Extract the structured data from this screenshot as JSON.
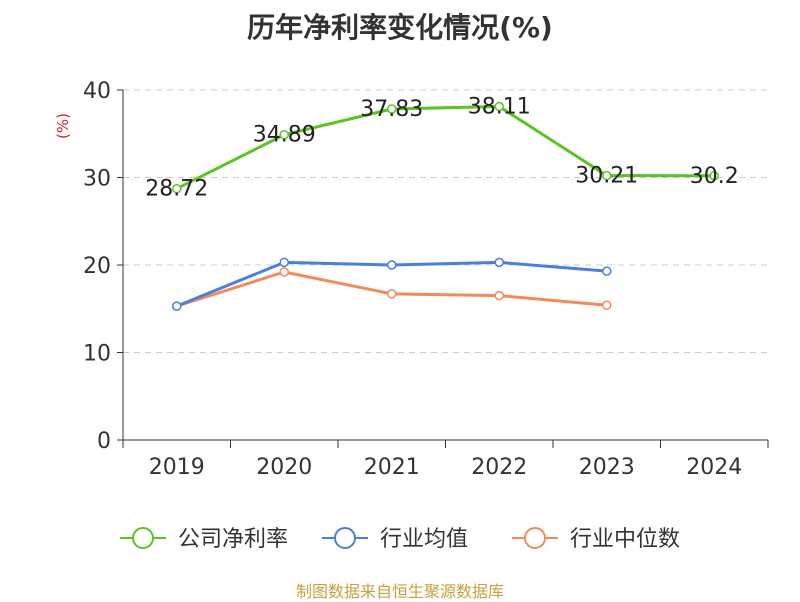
{
  "chart_data": {
    "type": "line",
    "title": "历年净利率变化情况(%)",
    "ylabel": "(%)",
    "categories": [
      "2019",
      "2020",
      "2021",
      "2022",
      "2023",
      "2024"
    ],
    "ylim": [
      0,
      40
    ],
    "yticks": [
      "0",
      "10",
      "20",
      "30",
      "40"
    ],
    "grid": true,
    "legend_position": "bottom",
    "series": [
      {
        "name": "公司净利率",
        "color": "#5cc324",
        "values": [
          28.72,
          34.89,
          37.83,
          38.11,
          30.21,
          30.2
        ],
        "labels": [
          "28.72",
          "34.89",
          "37.83",
          "38.11",
          "30.21",
          "30.2"
        ]
      },
      {
        "name": "行业均值",
        "color": "#4a80dc",
        "values": [
          15.3,
          20.3,
          20.0,
          20.3,
          19.3,
          null
        ]
      },
      {
        "name": "行业中位数",
        "color": "#f28b5b",
        "values": [
          15.3,
          19.2,
          16.7,
          16.5,
          15.4,
          null
        ]
      }
    ]
  },
  "source_note": "制图数据来自恒生聚源数据库"
}
